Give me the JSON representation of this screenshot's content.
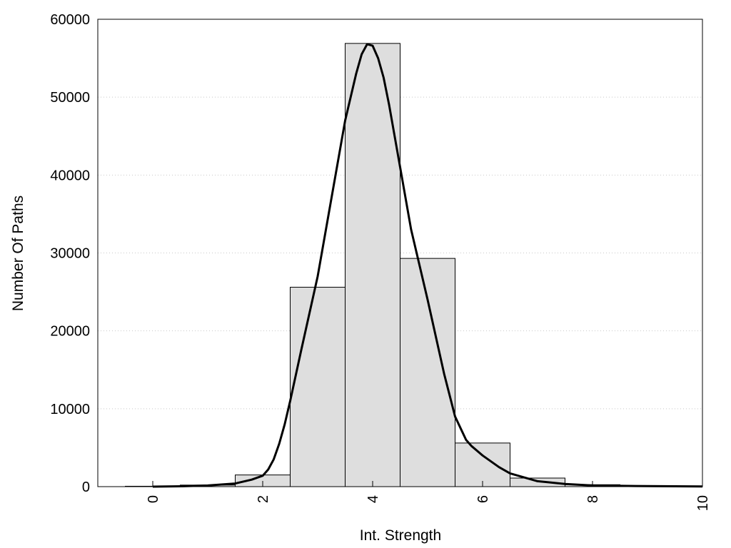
{
  "chart_data": {
    "type": "bar",
    "xlabel": "Int. Strength",
    "ylabel": "Number Of Paths",
    "xlim": [
      -1,
      10
    ],
    "ylim": [
      0,
      60000
    ],
    "x_ticks": [
      "0",
      "2",
      "4",
      "6",
      "8",
      "10"
    ],
    "y_ticks": [
      "0",
      "10000",
      "20000",
      "30000",
      "40000",
      "50000",
      "60000"
    ],
    "grid": "horizontal dotted",
    "bars": {
      "categories": [
        0,
        1,
        2,
        3,
        4,
        5,
        6,
        7,
        8,
        9
      ],
      "values": [
        50,
        200,
        1500,
        25600,
        56900,
        29300,
        5600,
        1100,
        250,
        80
      ]
    },
    "curve": {
      "x": [
        0,
        0.5,
        1,
        1.5,
        1.8,
        2,
        2.1,
        2.2,
        2.3,
        2.4,
        2.5,
        2.7,
        3,
        3.3,
        3.5,
        3.7,
        3.8,
        3.9,
        4,
        4.1,
        4.2,
        4.3,
        4.5,
        4.7,
        5,
        5.3,
        5.5,
        5.7,
        5.8,
        6,
        6.3,
        6.5,
        7,
        7.5,
        8,
        9,
        10
      ],
      "y": [
        0,
        50,
        150,
        400,
        900,
        1400,
        2200,
        3500,
        5500,
        8000,
        11000,
        17500,
        27000,
        39000,
        47000,
        53000,
        55500,
        56800,
        56600,
        55000,
        52500,
        49000,
        41000,
        33000,
        24000,
        14500,
        9000,
        6000,
        5200,
        4000,
        2500,
        1700,
        700,
        350,
        150,
        60,
        20
      ]
    },
    "colors": {
      "bar_fill": "#dedede",
      "bar_stroke": "#000000",
      "curve": "#000000",
      "grid": "#c8c8c8"
    }
  }
}
